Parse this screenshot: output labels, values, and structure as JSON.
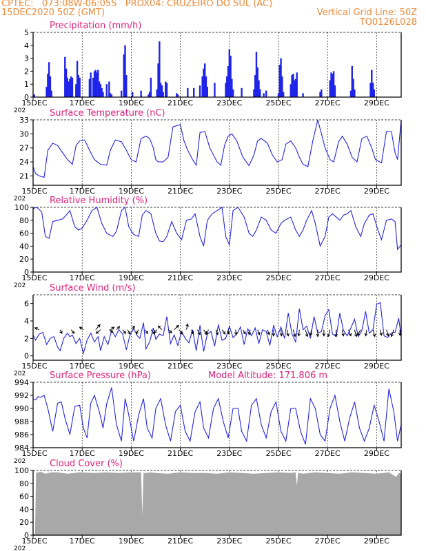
{
  "header": {
    "line1_left": "CPTEC:   073:08W-06:05S   PROX04: CRUZEIRO DO SUL (AC)",
    "line2_left": "15DEC2020 50Z (GMT)",
    "line2_right": "Vertical Grid Line: 50Z",
    "line3_right": "TQ0126L028"
  },
  "colors": {
    "header": "#f08a3a",
    "title": "#e0207a",
    "series": "#2323e0",
    "bars": "#1f24e8",
    "cloud": "#a8a8a8",
    "grid": "#000000"
  },
  "x_ticks": [
    "15DEC",
    "17DEC",
    "19DEC",
    "21DEC",
    "23DEC",
    "25DEC",
    "27DEC",
    "29DEC"
  ],
  "year_fragment": "202",
  "chart_data": [
    {
      "type": "bar",
      "title": "Precipitation (mm/h)",
      "ylim": [
        0,
        5
      ],
      "yticks": [
        "0",
        "1",
        "2",
        "3",
        "4",
        "5"
      ],
      "x_range": [
        0,
        15
      ],
      "x": [
        0.05,
        0.55,
        0.6,
        0.65,
        0.7,
        0.75,
        1.3,
        1.35,
        1.4,
        1.45,
        1.5,
        1.55,
        1.6,
        1.75,
        1.8,
        1.85,
        1.9,
        2.3,
        2.35,
        2.45,
        2.5,
        2.55,
        2.6,
        2.65,
        2.7,
        2.75,
        2.8,
        2.85,
        3.0,
        3.1,
        3.15,
        3.2,
        3.6,
        3.7,
        3.75,
        3.8,
        4.05,
        4.4,
        4.7,
        4.75,
        4.8,
        5.05,
        5.1,
        5.15,
        5.2,
        5.25,
        5.3,
        5.4,
        5.45,
        5.85,
        5.9,
        6.3,
        6.55,
        6.8,
        6.9,
        6.95,
        7.0,
        7.05,
        7.1,
        7.4,
        7.85,
        7.9,
        7.95,
        8.0,
        8.05,
        8.1,
        8.15,
        8.5,
        9.0,
        9.05,
        9.1,
        9.15,
        9.2,
        9.25,
        9.4,
        9.5,
        10.0,
        10.05,
        10.1,
        10.15,
        10.2,
        10.5,
        10.55,
        10.6,
        10.65,
        10.7,
        10.75,
        11.0,
        11.7,
        11.75,
        12.1,
        12.15,
        12.2,
        12.25,
        12.3,
        12.95,
        13.0,
        13.05,
        13.1,
        13.75,
        13.8,
        13.85,
        13.9
      ],
      "values": [
        0.2,
        0.8,
        1.8,
        2.7,
        1.6,
        0.5,
        3.1,
        2.2,
        1.5,
        1.2,
        1.4,
        1.6,
        1.5,
        1.0,
        2.8,
        1.7,
        1.5,
        1.4,
        1.9,
        1.5,
        2.0,
        2.1,
        1.9,
        2.1,
        1.2,
        1.0,
        0.7,
        0.4,
        1.0,
        1.2,
        0.3,
        0.2,
        0.5,
        3.3,
        4.0,
        1.7,
        0.4,
        0.5,
        0.2,
        0.4,
        1.5,
        0.6,
        2.6,
        4.3,
        1.1,
        0.9,
        0.4,
        1.2,
        1.1,
        0.3,
        0.2,
        0.7,
        0.7,
        0.9,
        1.6,
        2.2,
        2.6,
        1.6,
        0.8,
        1.1,
        1.1,
        1.6,
        2.4,
        3.7,
        3.2,
        1.4,
        0.6,
        0.7,
        0.6,
        1.7,
        3.5,
        2.3,
        1.3,
        0.6,
        0.3,
        0.5,
        0.3,
        2.5,
        3.0,
        1.6,
        0.4,
        1.0,
        1.7,
        1.8,
        1.3,
        1.4,
        1.9,
        0.3,
        0.4,
        0.6,
        1.3,
        1.9,
        1.8,
        2.0,
        0.9,
        0.5,
        2.4,
        1.4,
        0.6,
        1.1,
        2.1,
        1.1,
        0.6
      ]
    },
    {
      "type": "line",
      "title": "Surface Temperature (nC)",
      "ylim": [
        19,
        33
      ],
      "yticks": [
        "21",
        "24",
        "27",
        "30",
        "33"
      ],
      "x_range": [
        0,
        15
      ],
      "x": [
        0,
        0.1,
        0.25,
        0.45,
        0.6,
        0.8,
        1.0,
        1.2,
        1.4,
        1.6,
        1.75,
        1.9,
        2.1,
        2.3,
        2.5,
        2.75,
        3.0,
        3.15,
        3.35,
        3.6,
        3.8,
        4.0,
        4.2,
        4.4,
        4.6,
        4.75,
        4.9,
        5.0,
        5.1,
        5.3,
        5.5,
        5.7,
        6.0,
        6.15,
        6.3,
        6.5,
        6.65,
        6.8,
        7.0,
        7.2,
        7.5,
        7.65,
        7.8,
        7.95,
        8.1,
        8.3,
        8.55,
        8.8,
        9.0,
        9.15,
        9.3,
        9.55,
        9.75,
        9.95,
        10.15,
        10.3,
        10.5,
        10.7,
        10.85,
        11.0,
        11.2,
        11.4,
        11.6,
        11.75,
        11.9,
        12.1,
        12.25,
        12.45,
        12.6,
        12.8,
        13.0,
        13.2,
        13.4,
        13.6,
        13.8,
        13.95,
        14.2,
        14.4,
        14.6,
        14.75,
        14.85,
        15.0
      ],
      "y": [
        23,
        21.5,
        21,
        20.7,
        26.5,
        28,
        27.5,
        26,
        24.5,
        23.5,
        27.5,
        28.5,
        28.7,
        26.5,
        24.5,
        23.5,
        23.3,
        26.5,
        28.7,
        28.3,
        26.5,
        24.5,
        24,
        29,
        29.5,
        29,
        27,
        24.5,
        24,
        24,
        25,
        31.5,
        32,
        28.5,
        26.5,
        24.5,
        23.3,
        30.3,
        30.5,
        27,
        24,
        23.3,
        27.5,
        29.5,
        30,
        28.5,
        25,
        23.2,
        25.5,
        28.5,
        29,
        28,
        25.5,
        24,
        24.5,
        27.8,
        28.5,
        27,
        25,
        23.5,
        23,
        28.5,
        33,
        30,
        27,
        24.5,
        24,
        28.3,
        29.5,
        27.8,
        25,
        24,
        29,
        29.5,
        27,
        24.5,
        23.8,
        30.5,
        30.5,
        26,
        24.5,
        33
      ]
    },
    {
      "type": "line",
      "title": "Relative Humidity (%)",
      "ylim": [
        0,
        100
      ],
      "yticks": [
        "0",
        "20",
        "40",
        "60",
        "80",
        "100"
      ],
      "x_range": [
        0,
        15
      ],
      "x": [
        0,
        0.15,
        0.35,
        0.5,
        0.65,
        0.8,
        1.0,
        1.2,
        1.35,
        1.5,
        1.7,
        1.85,
        2.0,
        2.2,
        2.4,
        2.6,
        2.8,
        3.0,
        3.25,
        3.4,
        3.6,
        3.75,
        3.9,
        4.1,
        4.3,
        4.45,
        4.6,
        4.8,
        5.0,
        5.15,
        5.3,
        5.45,
        5.65,
        5.85,
        6.05,
        6.25,
        6.45,
        6.6,
        6.8,
        6.95,
        7.1,
        7.3,
        7.5,
        7.7,
        7.85,
        8.0,
        8.15,
        8.35,
        8.6,
        8.8,
        8.95,
        9.1,
        9.3,
        9.5,
        9.7,
        9.9,
        10.1,
        10.25,
        10.5,
        10.7,
        10.85,
        11.0,
        11.15,
        11.35,
        11.5,
        11.7,
        11.9,
        12.05,
        12.2,
        12.35,
        12.5,
        12.65,
        12.8,
        12.95,
        13.15,
        13.35,
        13.5,
        13.7,
        13.85,
        14.05,
        14.2,
        14.4,
        14.6,
        14.75,
        14.85,
        15.0
      ],
      "y": [
        98,
        100,
        93,
        55,
        52,
        78,
        80,
        82,
        88,
        95,
        70,
        65,
        68,
        80,
        95,
        100,
        75,
        60,
        55,
        63,
        95,
        100,
        70,
        58,
        55,
        88,
        95,
        90,
        60,
        48,
        47,
        55,
        78,
        60,
        50,
        80,
        82,
        90,
        55,
        40,
        80,
        90,
        95,
        100,
        55,
        42,
        95,
        100,
        85,
        60,
        55,
        65,
        85,
        80,
        65,
        60,
        75,
        80,
        85,
        65,
        55,
        65,
        80,
        95,
        75,
        40,
        55,
        85,
        90,
        85,
        80,
        88,
        90,
        95,
        70,
        55,
        75,
        88,
        90,
        65,
        50,
        80,
        82,
        78,
        35,
        42
      ]
    },
    {
      "type": "line",
      "title": "Surface Wind (m/s)",
      "ylim": [
        -0.5,
        7
      ],
      "yticks": [
        "0",
        "2",
        "4",
        "6"
      ],
      "x_range": [
        0,
        15
      ],
      "x": [
        0,
        0.1,
        0.25,
        0.4,
        0.55,
        0.7,
        0.85,
        1.0,
        1.1,
        1.25,
        1.4,
        1.5,
        1.6,
        1.75,
        1.9,
        2.05,
        2.2,
        2.35,
        2.5,
        2.65,
        2.75,
        2.9,
        3.05,
        3.2,
        3.35,
        3.5,
        3.65,
        3.8,
        3.95,
        4.1,
        4.25,
        4.35,
        4.5,
        4.6,
        4.75,
        4.9,
        5.0,
        5.15,
        5.3,
        5.45,
        5.6,
        5.75,
        5.9,
        6.05,
        6.2,
        6.35,
        6.5,
        6.65,
        6.8,
        6.95,
        7.1,
        7.25,
        7.4,
        7.55,
        7.7,
        7.85,
        8.0,
        8.15,
        8.3,
        8.45,
        8.6,
        8.75,
        8.9,
        9.05,
        9.2,
        9.35,
        9.5,
        9.65,
        9.8,
        9.95,
        10.1,
        10.25,
        10.4,
        10.55,
        10.7,
        10.85,
        11.0,
        11.15,
        11.3,
        11.45,
        11.6,
        11.75,
        11.9,
        12.05,
        12.2,
        12.35,
        12.5,
        12.65,
        12.8,
        12.95,
        13.1,
        13.25,
        13.4,
        13.55,
        13.7,
        13.85,
        14.0,
        14.15,
        14.3,
        14.45,
        14.6,
        14.75,
        14.9,
        15.0
      ],
      "y": [
        2.4,
        1.8,
        2.5,
        2.7,
        1.3,
        2.0,
        2.2,
        1.0,
        0.6,
        2.0,
        2.6,
        2.2,
        2.4,
        1.4,
        2.0,
        0.3,
        1.8,
        2.6,
        1.6,
        2.2,
        0.6,
        2.2,
        1.3,
        2.9,
        2.2,
        3.0,
        2.5,
        0.7,
        2.4,
        3.1,
        2.3,
        2.0,
        3.8,
        0.8,
        1.6,
        3.2,
        1.9,
        2.5,
        2.3,
        4.5,
        1.4,
        2.4,
        1.2,
        2.8,
        2.0,
        1.5,
        3.0,
        0.6,
        3.5,
        0.5,
        2.5,
        2.8,
        1.1,
        3.6,
        1.8,
        2.0,
        3.4,
        2.1,
        2.5,
        3.3,
        1.3,
        3.1,
        2.3,
        3.2,
        1.4,
        3.0,
        2.8,
        1.2,
        3.5,
        2.2,
        3.3,
        2.0,
        4.9,
        2.5,
        1.6,
        5.4,
        3.0,
        3.4,
        2.0,
        4.5,
        2.6,
        2.8,
        4.6,
        5.3,
        2.5,
        2.2,
        4.9,
        2.9,
        2.3,
        3.2,
        4.2,
        2.2,
        2.9,
        5.1,
        2.6,
        3.0,
        5.9,
        6.1,
        2.3,
        2.1,
        2.6,
        2.7,
        4.3,
        2.2
      ],
      "vectors": {
        "x": [
          0.25,
          1.1,
          1.55,
          2.05,
          2.55,
          2.75,
          3.1,
          3.15,
          3.4,
          3.65,
          3.85,
          4.05,
          4.3,
          4.55,
          4.8,
          5.05,
          5.25,
          5.5,
          5.75,
          5.95,
          6.25,
          6.45,
          6.7,
          6.95,
          7.15,
          7.45,
          7.7,
          7.95,
          8.25,
          8.55,
          8.85,
          9.15,
          9.55,
          9.8,
          10.1,
          10.35,
          10.6,
          10.85,
          11.1,
          11.35,
          11.6,
          11.85,
          12.1,
          12.35,
          12.6,
          12.85,
          13.1,
          13.35,
          13.6,
          13.85,
          14.15,
          14.4,
          14.7,
          14.95
        ],
        "dx": [
          -0.7,
          0.3,
          0.5,
          -0.6,
          0.7,
          -0.7,
          0.6,
          0.6,
          0.5,
          0.5,
          0.4,
          0.3,
          -0.4,
          0.5,
          0.6,
          -0.5,
          -0.6,
          0.6,
          0.7,
          0.5,
          0.2,
          0.3,
          0.4,
          0.5,
          -0.4,
          0.3,
          0.5,
          0.1,
          0.1,
          0.4,
          -0.2,
          0.3,
          0.3,
          0.0,
          0.1,
          0.2,
          0.3,
          -0.1,
          0.3,
          -0.2,
          0.0,
          0.0,
          -0.3,
          0.0,
          0.2,
          0.4,
          0.3,
          -0.5,
          -0.2,
          0.3,
          0.2,
          0.3,
          -0.4,
          0.0
        ],
        "dy": [
          0.3,
          -0.6,
          -0.6,
          0.4,
          0.8,
          -0.6,
          -0.4,
          0.4,
          0.5,
          -0.6,
          -0.7,
          0.6,
          -0.7,
          -0.6,
          -0.7,
          -0.5,
          0.6,
          -0.5,
          0.7,
          -0.7,
          0.9,
          -0.7,
          -0.8,
          -0.7,
          -0.8,
          -0.8,
          -0.7,
          -0.7,
          -0.8,
          -0.7,
          -0.8,
          -0.8,
          -0.8,
          -1.0,
          -1.0,
          -1.0,
          -1.1,
          -1.0,
          -1.1,
          -0.9,
          -1.1,
          -1.0,
          -1.1,
          -1.1,
          -1.0,
          -1.0,
          -1.1,
          -0.9,
          -1.0,
          -1.1,
          -0.9,
          -1.0,
          -1.1,
          -0.9
        ]
      }
    },
    {
      "type": "line",
      "title": "Surface Pressure (hPa)",
      "ylim": [
        984,
        994
      ],
      "yticks": [
        "984",
        "986",
        "988",
        "990",
        "992",
        "994"
      ],
      "x_range": [
        0,
        15
      ],
      "x": [
        0,
        0.1,
        0.2,
        0.3,
        0.45,
        0.6,
        0.8,
        1.0,
        1.15,
        1.3,
        1.5,
        1.7,
        1.9,
        2.05,
        2.2,
        2.35,
        2.5,
        2.7,
        2.85,
        3.0,
        3.2,
        3.4,
        3.6,
        3.75,
        3.9,
        4.1,
        4.3,
        4.5,
        4.65,
        4.85,
        5.0,
        5.2,
        5.4,
        5.6,
        5.8,
        6.0,
        6.2,
        6.4,
        6.6,
        6.8,
        6.95,
        7.15,
        7.35,
        7.55,
        7.75,
        7.95,
        8.15,
        8.35,
        8.5,
        8.7,
        8.9,
        9.1,
        9.3,
        9.5,
        9.7,
        9.9,
        10.1,
        10.3,
        10.5,
        10.7,
        10.9,
        11.1,
        11.3,
        11.5,
        11.7,
        11.9,
        12.1,
        12.3,
        12.5,
        12.7,
        12.9,
        13.1,
        13.3,
        13.5,
        13.7,
        13.9,
        14.1,
        14.3,
        14.5,
        14.7,
        14.85,
        15.0
      ],
      "y": [
        991.5,
        991.3,
        991.8,
        991.7,
        992.0,
        990.0,
        986.5,
        990.8,
        991.0,
        988.5,
        986.0,
        990.3,
        990.5,
        987.0,
        985.5,
        990.8,
        992.0,
        989.5,
        987.0,
        990.7,
        993.2,
        987.5,
        985.0,
        991.5,
        989.0,
        985.0,
        989.0,
        991.5,
        987.0,
        985.5,
        990.0,
        991.5,
        987.5,
        985.0,
        989.5,
        990.5,
        986.5,
        985.0,
        989.5,
        991.0,
        987.0,
        985.5,
        990.0,
        991.5,
        988.0,
        985.5,
        990.0,
        990.0,
        986.5,
        985.0,
        990.5,
        991.5,
        987.5,
        985.5,
        989.5,
        991.0,
        986.5,
        985.0,
        990.0,
        990.0,
        986.5,
        984.5,
        991.5,
        990.0,
        986.0,
        985.0,
        990.0,
        992.0,
        988.0,
        985.0,
        988.5,
        991.0,
        987.0,
        985.0,
        987.0,
        990.5,
        988.0,
        985.0,
        993.0,
        989.5,
        985.0,
        987.5
      ],
      "annotation": "Model Altitude: 171.806 m"
    },
    {
      "type": "area",
      "title": "Cloud Cover (%)",
      "ylim": [
        0,
        100
      ],
      "yticks": [
        "0",
        "20",
        "40",
        "60",
        "80",
        "100"
      ],
      "x_range": [
        0,
        15
      ],
      "x": [
        0,
        0.08,
        0.12,
        0.3,
        0.5,
        0.75,
        1.0,
        1.4,
        1.9,
        2.5,
        3.0,
        3.5,
        4.0,
        4.4,
        4.45,
        4.5,
        4.6,
        4.8,
        5.0,
        5.5,
        6.0,
        6.5,
        7.0,
        7.5,
        8.0,
        8.5,
        9.0,
        9.5,
        10.0,
        10.5,
        10.7,
        10.75,
        10.8,
        11.0,
        11.5,
        12.0,
        12.5,
        13.0,
        13.5,
        14.0,
        14.5,
        14.8,
        14.9,
        15.0
      ],
      "y": [
        2,
        2,
        96,
        98,
        95,
        97,
        97,
        95,
        97,
        96,
        97,
        96,
        97,
        97,
        30,
        96,
        96,
        97,
        96,
        95,
        97,
        96,
        96,
        95,
        97,
        96,
        95,
        96,
        97,
        96,
        97,
        76,
        96,
        95,
        97,
        96,
        95,
        97,
        96,
        95,
        97,
        90,
        96,
        95
      ]
    }
  ]
}
